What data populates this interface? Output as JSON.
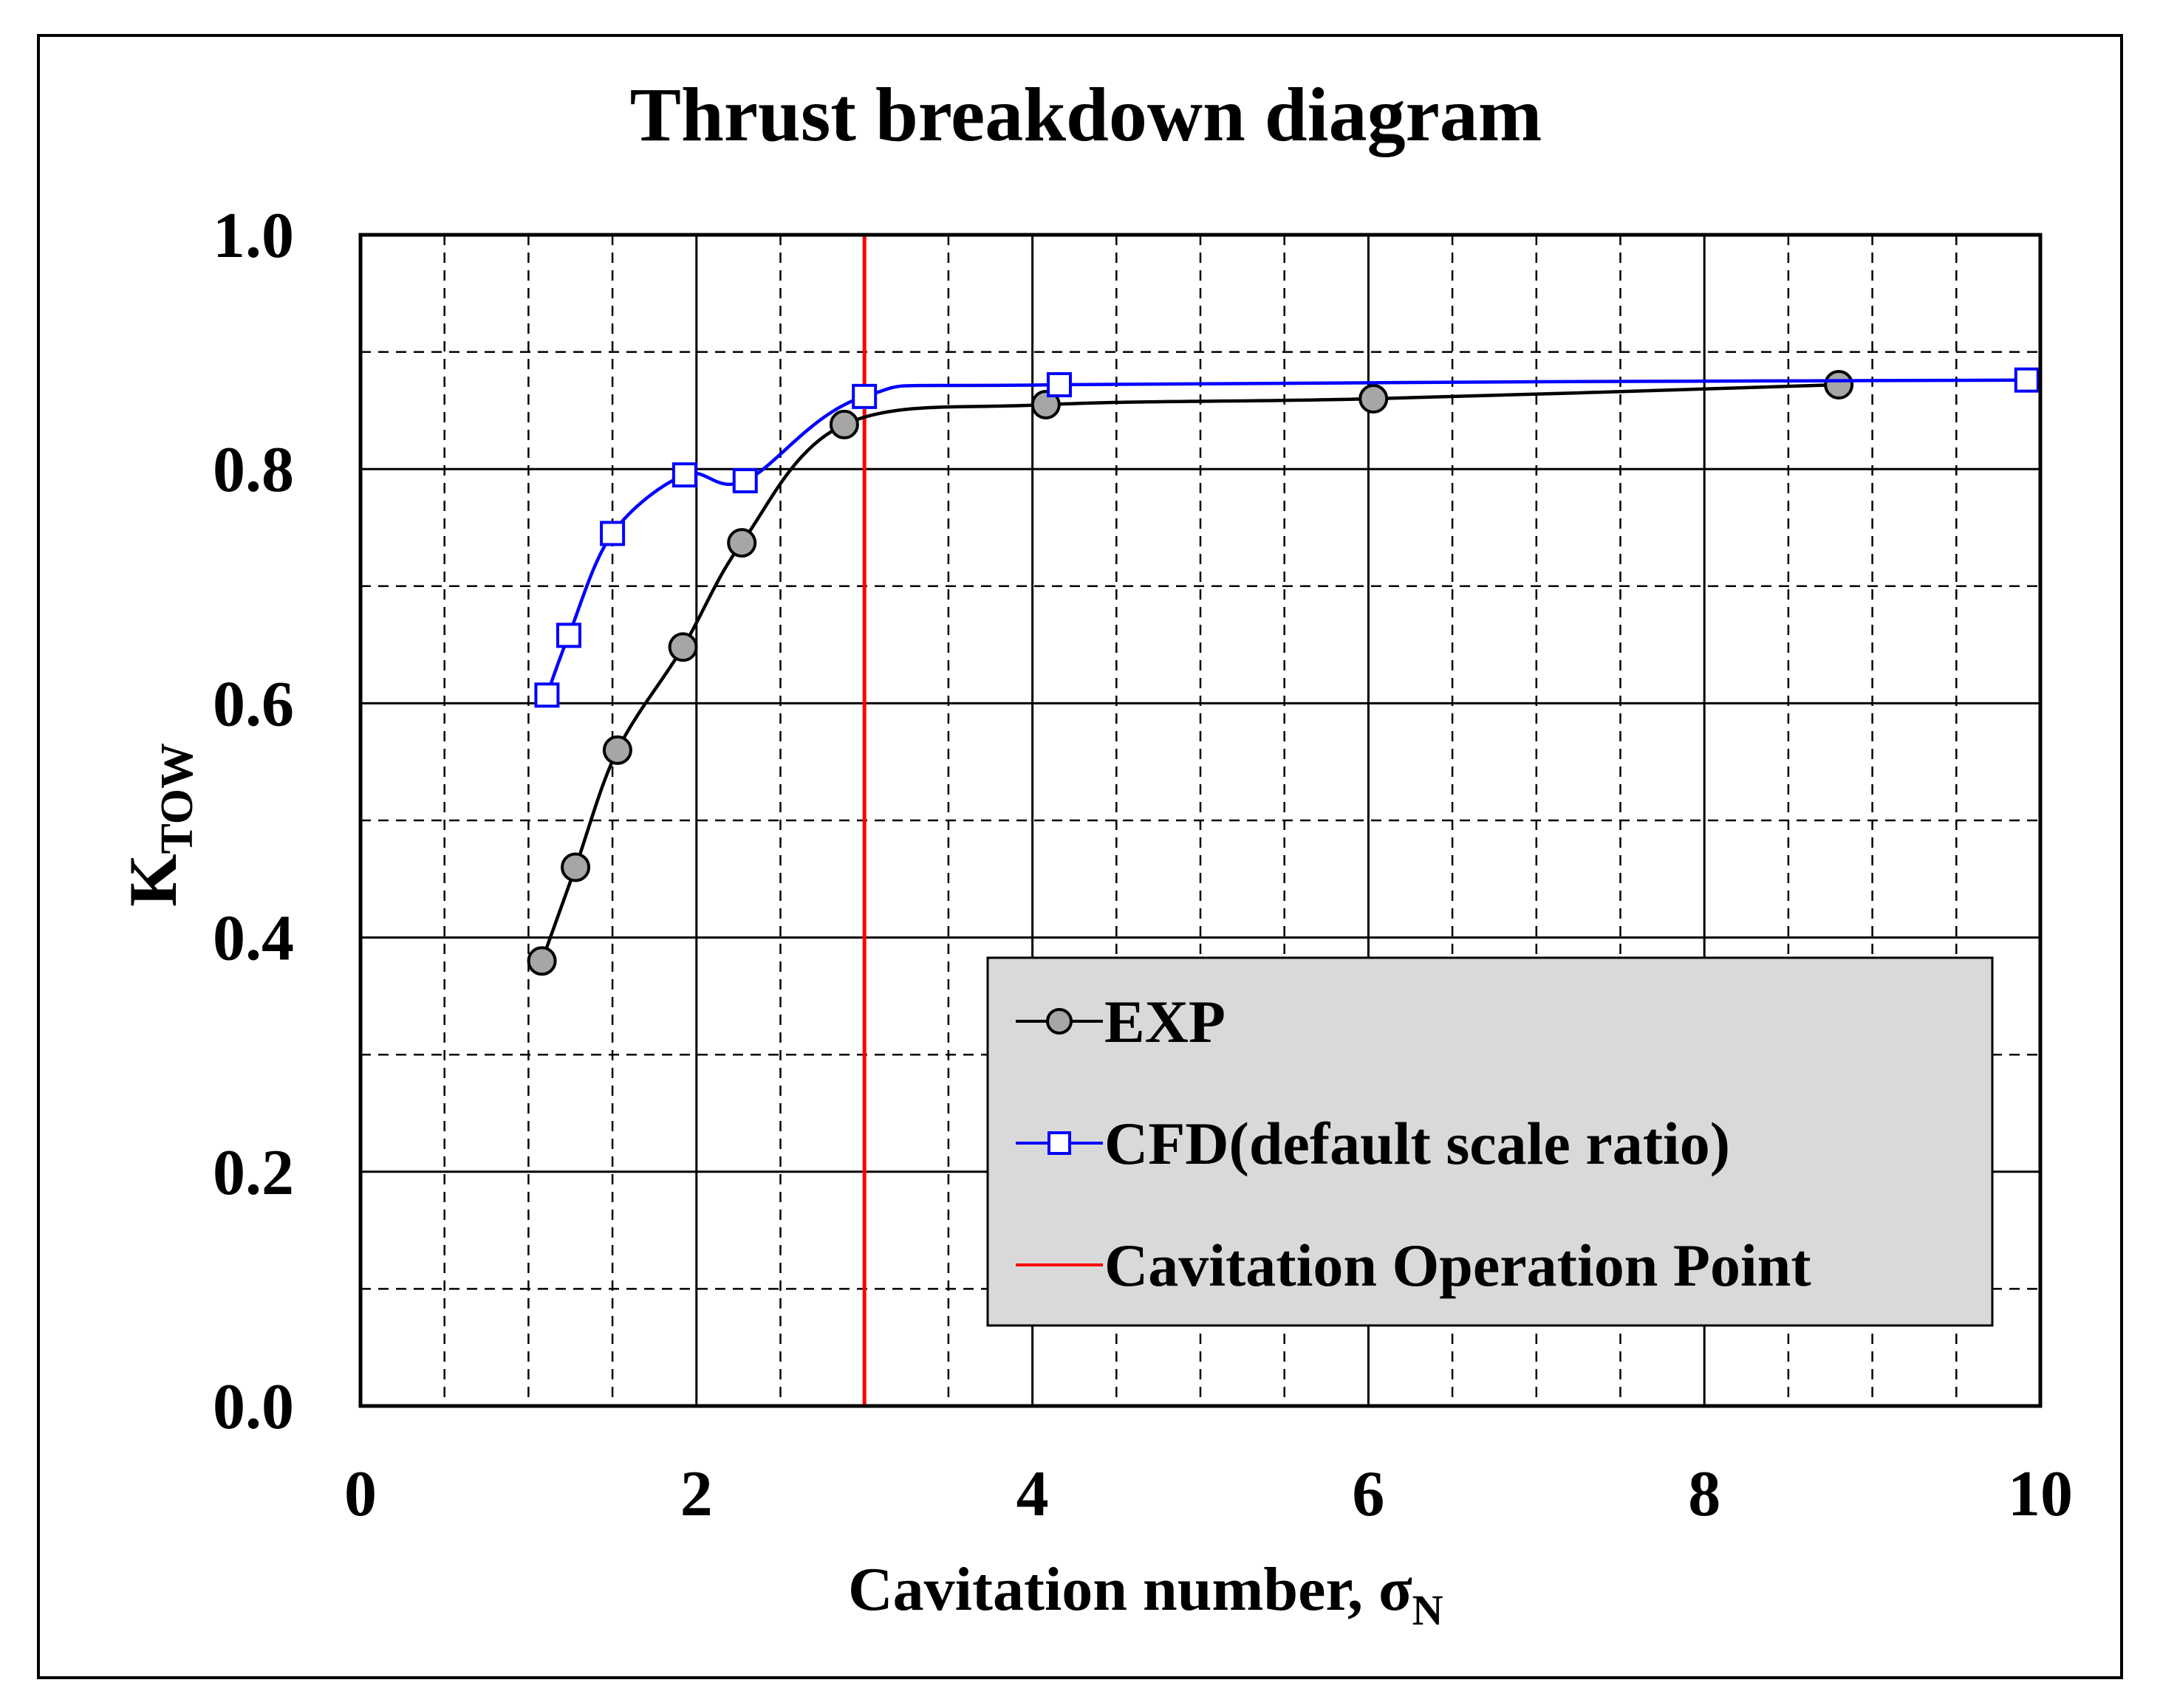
{
  "chart_data": {
    "type": "line",
    "title": "Thrust breakdown diagram",
    "xlabel": "Cavitation number, σ",
    "xlabel_sub": "N",
    "ylabel": "K",
    "ylabel_sub": "TOW",
    "xlim": [
      0,
      10
    ],
    "ylim": [
      0,
      1.0
    ],
    "x_ticks": [
      0,
      2,
      4,
      6,
      8,
      10
    ],
    "x_tick_labels": [
      "0",
      "2",
      "4",
      "6",
      "8",
      "10"
    ],
    "y_ticks": [
      0.0,
      0.2,
      0.4,
      0.6,
      0.8,
      1.0
    ],
    "y_tick_labels": [
      "0.0",
      "0.2",
      "0.4",
      "0.6",
      "0.8",
      "1.0"
    ],
    "x_minor_step": 0.5,
    "y_minor_step": 0.1,
    "grid": true,
    "legend_position": "bottom-right",
    "series": [
      {
        "name": "EXP",
        "color": "#000000",
        "marker": "circle",
        "marker_fill": "#a6a6a6",
        "x": [
          1.08,
          1.28,
          1.53,
          1.92,
          2.27,
          2.88,
          4.08,
          6.03,
          8.8
        ],
        "y": [
          0.38,
          0.46,
          0.56,
          0.648,
          0.737,
          0.838,
          0.855,
          0.86,
          0.872
        ]
      },
      {
        "name": "CFD(default scale ratio)",
        "color": "#0000ff",
        "marker": "square",
        "marker_fill": "#ffffff",
        "x": [
          1.11,
          1.24,
          1.5,
          1.93,
          2.29,
          3.0,
          4.16,
          9.92
        ],
        "y": [
          0.607,
          0.658,
          0.745,
          0.795,
          0.79,
          0.862,
          0.872,
          0.876
        ]
      }
    ],
    "vline": {
      "name": "Cavitation Operation Point",
      "x": 3.0,
      "color": "#ff0000"
    }
  }
}
